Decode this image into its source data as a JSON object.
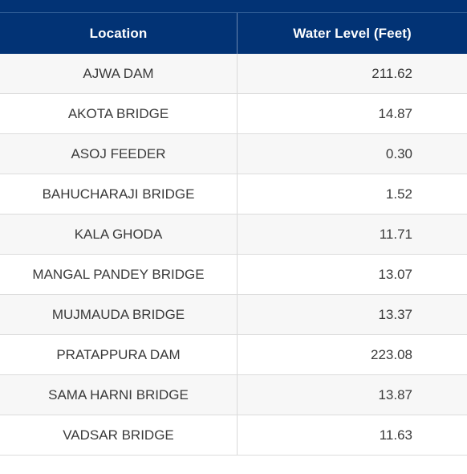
{
  "table": {
    "headers": {
      "location": "Location",
      "water_level": "Water Level (Feet)"
    },
    "rows": [
      {
        "location": "AJWA DAM",
        "level": "211.62"
      },
      {
        "location": "AKOTA BRIDGE",
        "level": "14.87"
      },
      {
        "location": "ASOJ FEEDER",
        "level": "0.30"
      },
      {
        "location": "BAHUCHARAJI BRIDGE",
        "level": "1.52"
      },
      {
        "location": "KALA GHODA",
        "level": "11.71"
      },
      {
        "location": "MANGAL PANDEY BRIDGE",
        "level": "13.07"
      },
      {
        "location": "MUJMAUDA BRIDGE",
        "level": "13.37"
      },
      {
        "location": "PRATAPPURA DAM",
        "level": "223.08"
      },
      {
        "location": "SAMA HARNI BRIDGE",
        "level": "13.87"
      },
      {
        "location": "VADSAR BRIDGE",
        "level": "11.63"
      }
    ]
  },
  "colors": {
    "header_bg": "#023375",
    "header_text": "#ffffff",
    "row_alt_bg": "#f7f7f7",
    "cell_text": "#3a3a3a"
  }
}
